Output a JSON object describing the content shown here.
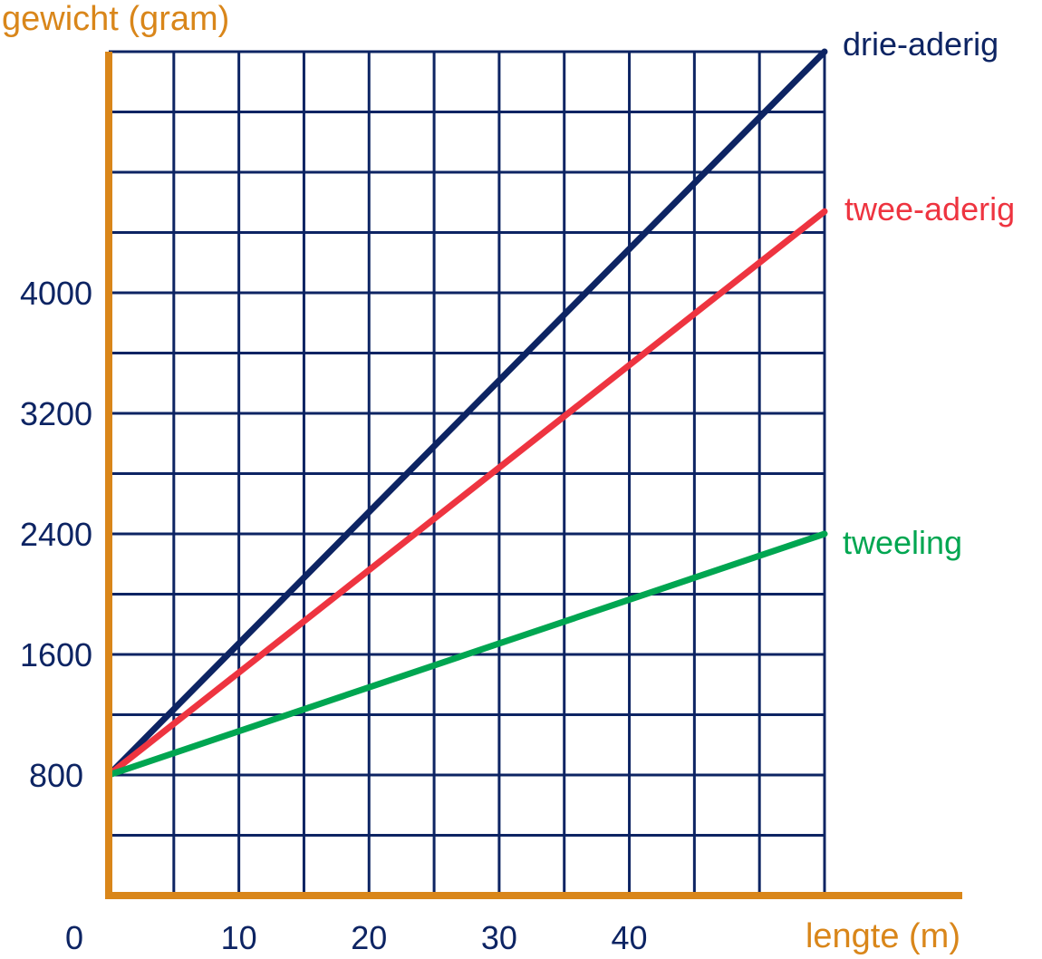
{
  "chart_data": {
    "type": "line",
    "ylabel": "gewicht (gram)",
    "xlabel": "lengte (m)",
    "xlim": [
      0,
      55
    ],
    "ylim": [
      0,
      5600
    ],
    "x_ticks": [
      0,
      10,
      20,
      30,
      40
    ],
    "x_tick_labels": [
      "0",
      "10",
      "20",
      "30",
      "40"
    ],
    "y_ticks": [
      800,
      1600,
      2400,
      3200,
      4000
    ],
    "y_tick_labels": [
      "800",
      "1600",
      "2400",
      "3200",
      "4000"
    ],
    "grid": true,
    "grid_x_step": 5,
    "grid_y_step": 400,
    "series": [
      {
        "name": "drie-aderig",
        "x": [
          0,
          55
        ],
        "y": [
          800,
          5600
        ],
        "color": "#0d2463"
      },
      {
        "name": "twee-aderig",
        "x": [
          0,
          55
        ],
        "y": [
          800,
          4540
        ],
        "color": "#ee3440"
      },
      {
        "name": "tweeling",
        "x": [
          0,
          55
        ],
        "y": [
          800,
          2400
        ],
        "color": "#00a651"
      }
    ],
    "colors": {
      "axis": "#d9861a",
      "grid": "#0d2463",
      "tick_text": "#0d2463"
    }
  }
}
